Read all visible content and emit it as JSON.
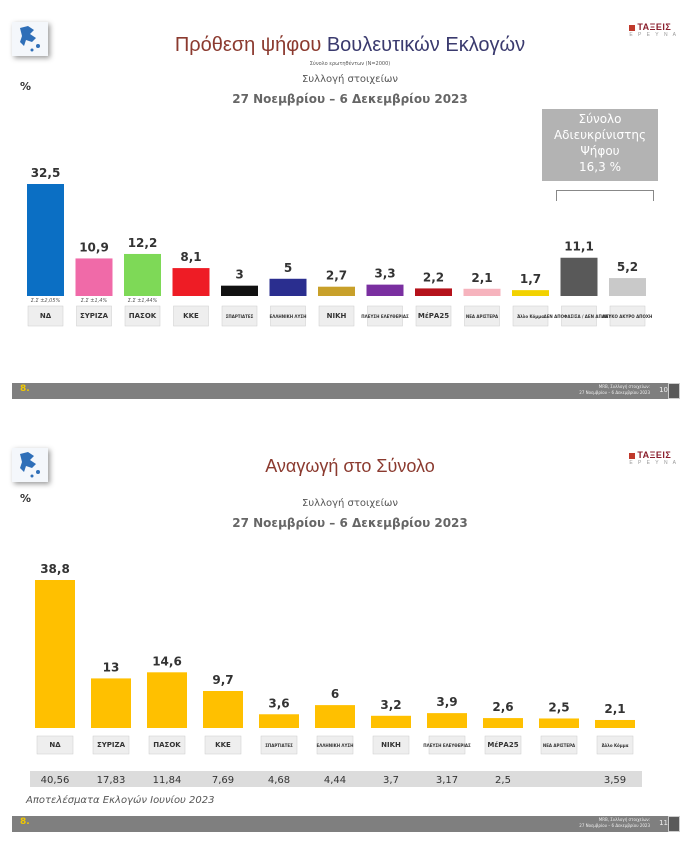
{
  "slide1": {
    "title_part1": "Πρόθεση ψήφου",
    "title_part2": "Βουλευτικών Εκλογών",
    "sample": "Σύνολο ερωτηθέντων (N=2000)",
    "collection": "Συλλογή στοιχείων",
    "dates": "27 Νοεμβρίου – 6 Δεκεμβρίου  2023",
    "percent_symbol": "%",
    "logo": "ΤΑΞΕΙΣ",
    "logo_sub": "Ε Ρ Ε Υ Ν Α",
    "undecided_box": [
      "Σύνολο",
      "Αδιευκρίνιστης",
      "Ψήφου",
      "16,3 %"
    ],
    "footer_left": "8.",
    "footer_right_1": "MRB, Συλλογή στοιχείων:",
    "footer_right_2": "27 Νοεμβρίου – 6 Δεκεμβρίου 2023",
    "page": "10"
  },
  "slide2": {
    "title": "Αναγωγή στο Σύνολο",
    "collection": "Συλλογή στοιχείων",
    "dates": "27 Νοεμβρίου – 6 Δεκεμβρίου  2023",
    "percent_symbol": "%",
    "logo": "ΤΑΞΕΙΣ",
    "logo_sub": "Ε Ρ Ε Υ Ν Α",
    "results_label": "Αποτελέσματα Εκλογών Ιουνίου 2023",
    "footer_left": "8.",
    "footer_right_1": "MRB, Συλλογή στοιχείων:",
    "footer_right_2": "27 Νοεμβρίου – 6 Δεκεμβρίου 2023",
    "page": "11"
  },
  "chart_data": [
    {
      "type": "bar",
      "title": "Πρόθεση ψήφου Βουλευτικών Εκλογών",
      "ylabel": "%",
      "categories": [
        "ΝΔ",
        "ΣΥΡΙΖΑ",
        "ΠΑΣΟΚ",
        "ΚΚΕ",
        "Σπαρτιάτες",
        "Ελληνική Λύση",
        "Νίκη",
        "Πλεύση Ελευθερίας",
        "ΜέΡΑ25",
        "Νέα Αριστερά",
        "Άλλο Κόμμα",
        "Δεν απαντώ",
        "Λευκό/Άκυρο/Αποχή"
      ],
      "values": [
        32.5,
        10.9,
        12.2,
        8.1,
        3,
        5,
        2.7,
        3.3,
        2.2,
        2.1,
        1.7,
        11.1,
        5.2
      ],
      "value_labels": [
        "32,5",
        "10,9",
        "12,2",
        "8,1",
        "3",
        "5",
        "2,7",
        "3,3",
        "2,2",
        "2,1",
        "1,7",
        "11,1",
        "5,2"
      ],
      "bar_colors": [
        "#0b6fc4",
        "#f06aa8",
        "#7ed957",
        "#ee1c25",
        "#111111",
        "#2a2e8f",
        "#c8a02a",
        "#7a2fa0",
        "#b5121b",
        "#f6b3bd",
        "#f2d200",
        "#595959",
        "#c9c9c9"
      ],
      "logo_labels": [
        "ΝΔ",
        "ΣΥΡΙΖΑ",
        "ΠΑΣΟΚ",
        "ΚΚΕ",
        "ΣΠΑΡΤΙΑΤΕΣ",
        "ΕΛΛΗΝΙΚΗ ΛΥΣΗ",
        "ΝΙΚΗ",
        "ΠΛΕΥΣΗ ΕΛΕΥΘΕΡΙΑΣ",
        "ΜέΡΑ25",
        "ΝΕΑ ΑΡΙΣΤΕΡΑ",
        "Άλλο Κόμμα",
        "ΔΕΝ ΑΠΟΦΑΣΙΣΑ / ΔΕΝ ΑΠΑΝΤΩ",
        "ΛΕΥΚΟ ΑΚΥΡΟ ΑΠΟΧΗ"
      ],
      "error_labels": [
        "Σ.Σ ±2,05%",
        "Σ.Σ ±1,4%",
        "Σ.Σ ±1,44%"
      ],
      "ylim": [
        0,
        35
      ],
      "grid": false
    },
    {
      "type": "bar",
      "title": "Αναγωγή στο Σύνολο",
      "ylabel": "%",
      "categories": [
        "ΝΔ",
        "ΣΥΡΙΖΑ",
        "ΠΑΣΟΚ",
        "ΚΚΕ",
        "Σπαρτιάτες",
        "Ελληνική Λύση",
        "Νίκη",
        "Πλεύση Ελευθερίας",
        "ΜέΡΑ25",
        "Νέα Αριστερά",
        "Άλλο Κόμμα"
      ],
      "values": [
        38.8,
        13,
        14.6,
        9.7,
        3.6,
        6,
        3.2,
        3.9,
        2.6,
        2.5,
        2.1
      ],
      "value_labels": [
        "38,8",
        "13",
        "14,6",
        "9,7",
        "3,6",
        "6",
        "3,2",
        "3,9",
        "2,6",
        "2,5",
        "2,1"
      ],
      "bar_color": "#ffc000",
      "logo_labels": [
        "ΝΔ",
        "ΣΥΡΙΖΑ",
        "ΠΑΣΟΚ",
        "ΚΚΕ",
        "ΣΠΑΡΤΙΑΤΕΣ",
        "ΕΛΛΗΝΙΚΗ ΛΥΣΗ",
        "ΝΙΚΗ",
        "ΠΛΕΥΣΗ ΕΛΕΥΘΕΡΙΑΣ",
        "ΜέΡΑ25",
        "ΝΕΑ ΑΡΙΣΤΕΡΑ",
        "Άλλο Κόμμα"
      ],
      "june_2023_results": [
        "40,56",
        "17,83",
        "11,84",
        "7,69",
        "4,68",
        "4,44",
        "3,7",
        "3,17",
        "2,5",
        "",
        "3,59"
      ],
      "ylim": [
        0,
        42
      ],
      "grid": false
    }
  ]
}
